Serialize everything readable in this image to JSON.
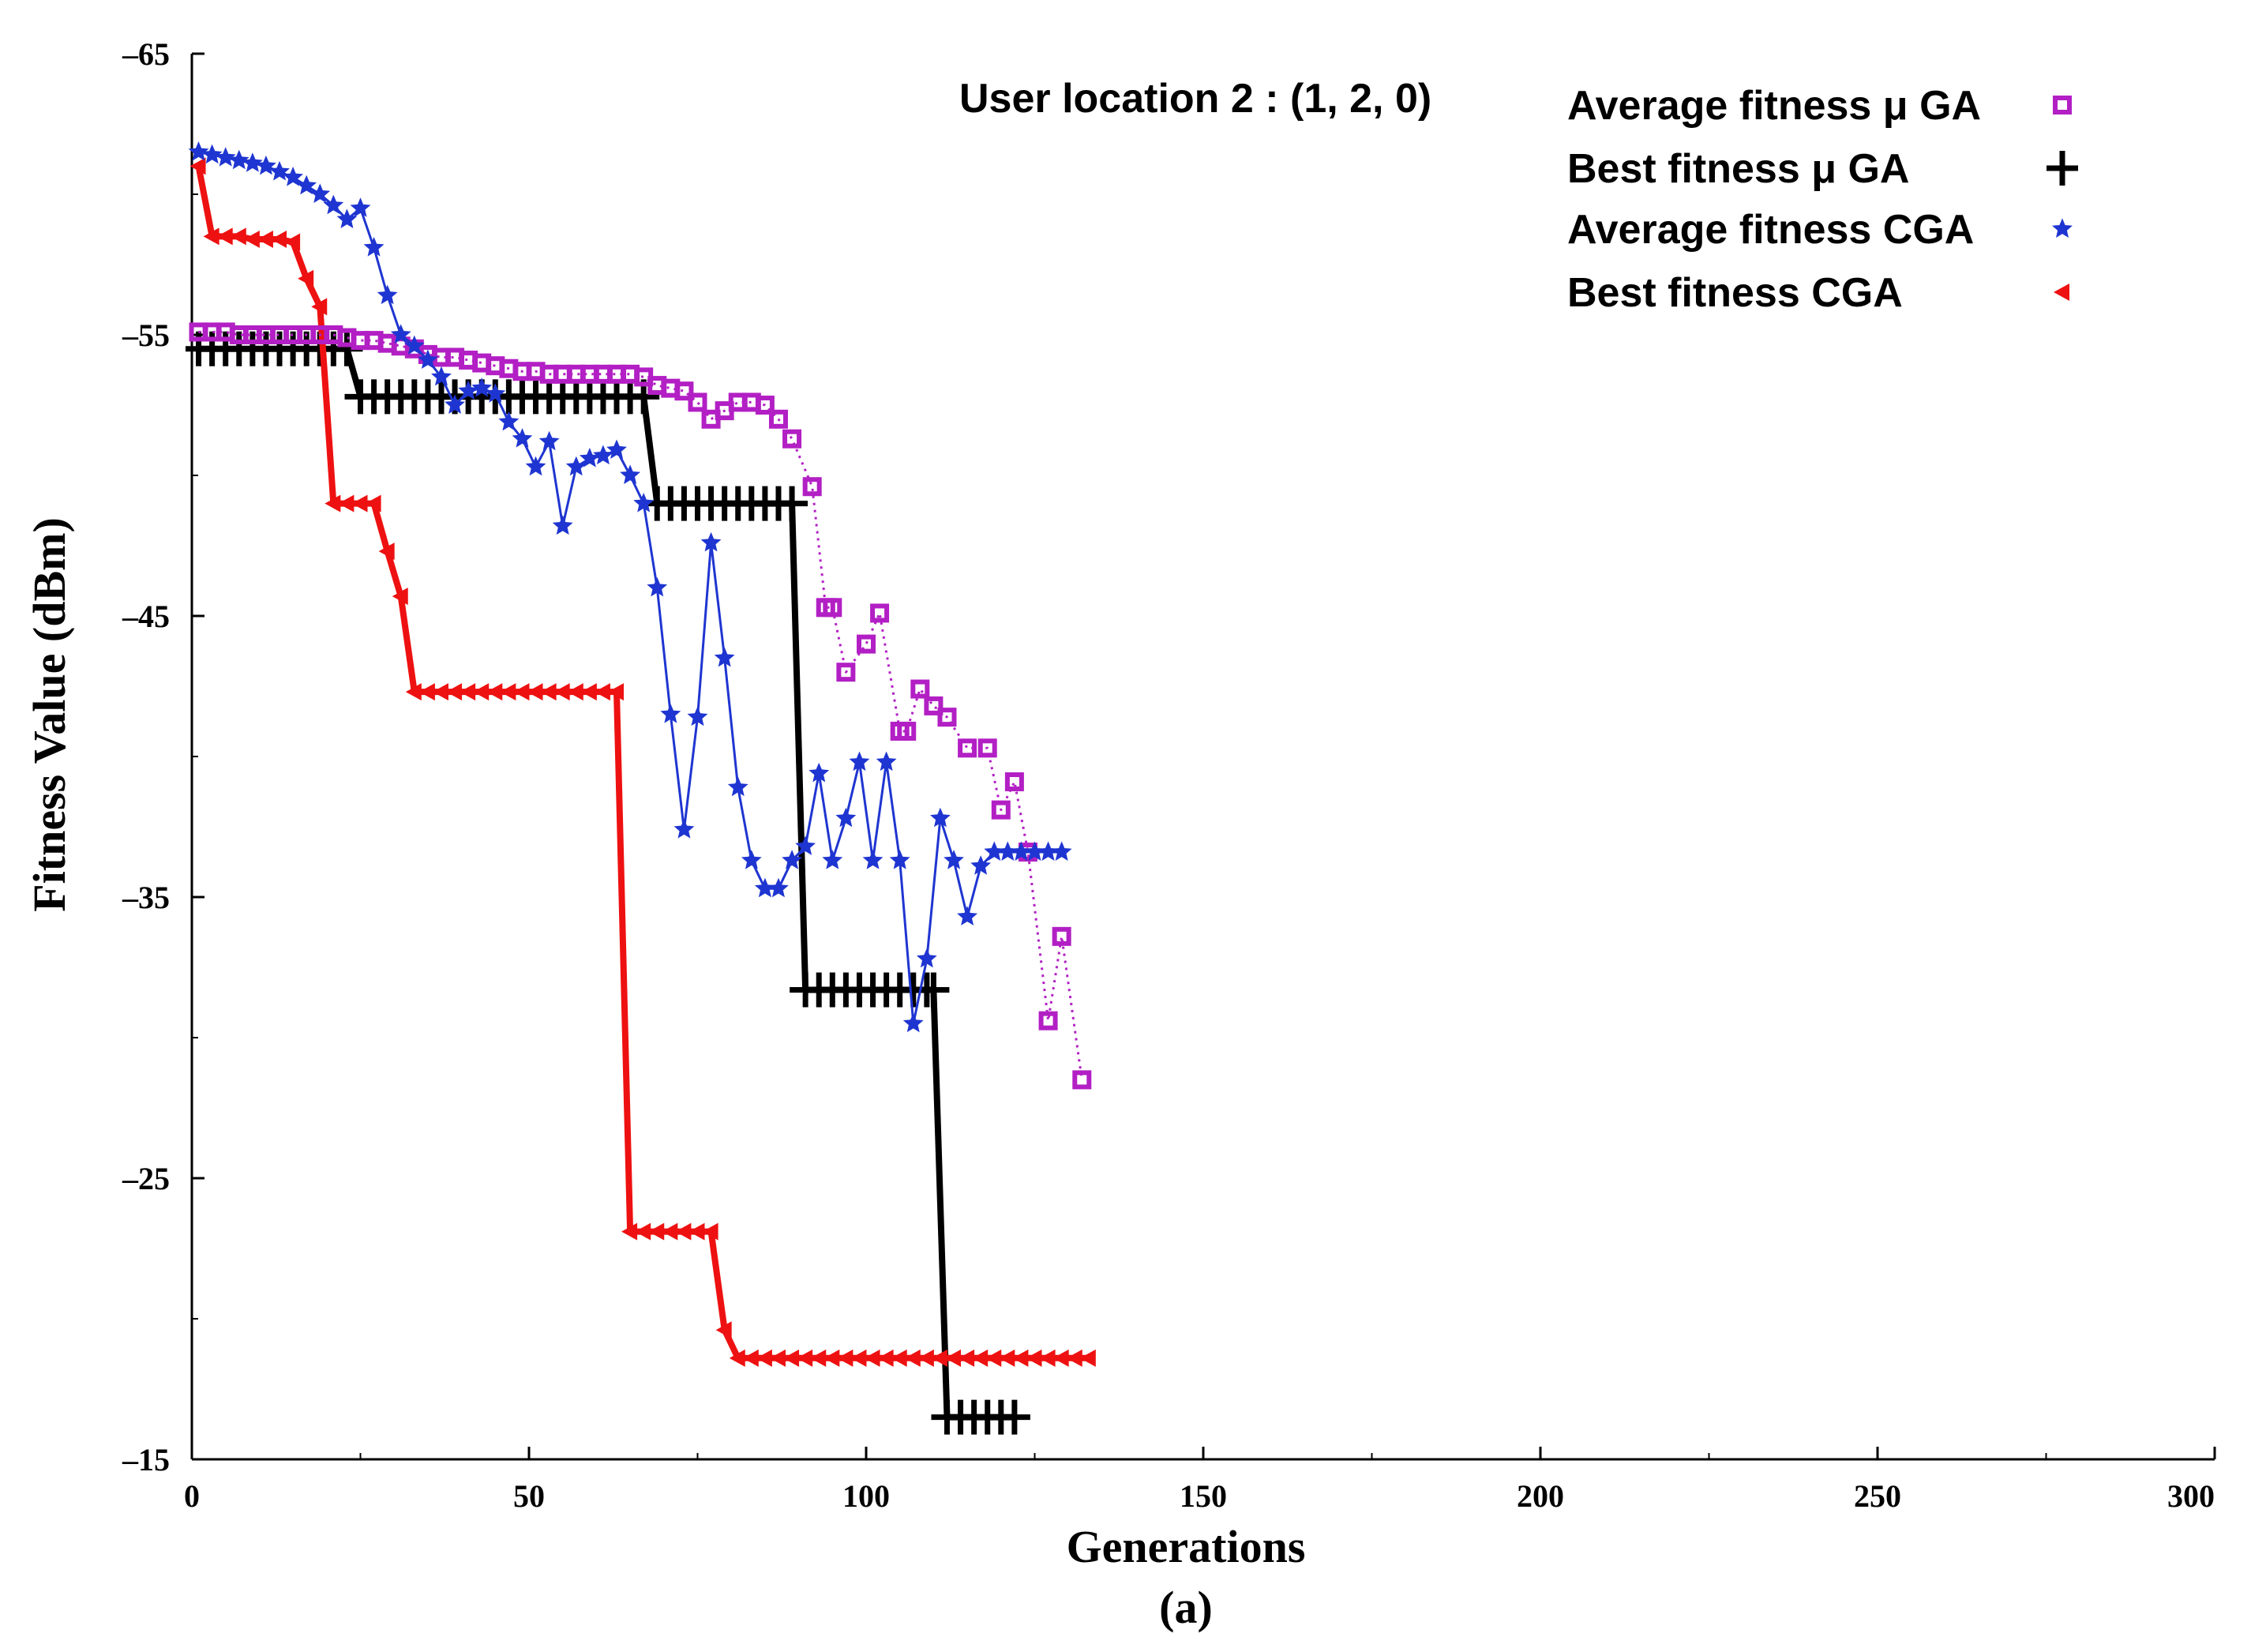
{
  "chart_data": {
    "type": "line",
    "title": "",
    "annotation": "User location 2 : (1, 2, 0)",
    "xlabel": "Generations",
    "ylabel": "Fitness Value (dBm)",
    "caption": "(a)",
    "xlim": [
      0,
      300
    ],
    "ylim": [
      -65,
      -15
    ],
    "x_ticks": [
      0,
      50,
      100,
      150,
      200,
      250,
      300
    ],
    "y_ticks": [
      -65,
      -55,
      -45,
      -35,
      -25,
      -15
    ],
    "legend_position": "top-right",
    "series": [
      {
        "name": "Average fitness μ GA",
        "color": "#b21fc4",
        "marker": "square",
        "line": "dotted",
        "x": [
          1,
          3,
          5,
          7,
          9,
          11,
          13,
          15,
          17,
          19,
          21,
          23,
          25,
          27,
          29,
          31,
          33,
          35,
          37,
          39,
          41,
          43,
          45,
          47,
          49,
          51,
          53,
          55,
          57,
          59,
          61,
          63,
          65,
          67,
          69,
          71,
          73,
          75,
          77,
          79,
          81,
          83,
          85,
          87,
          89,
          92,
          94,
          95,
          97,
          100,
          102,
          105,
          106,
          108,
          110,
          112,
          115,
          118,
          120,
          122,
          124,
          127,
          129,
          132
        ],
        "y": [
          -55.1,
          -55.1,
          -55.1,
          -55,
          -55,
          -55,
          -55,
          -55,
          -55,
          -55,
          -55,
          -54.9,
          -54.8,
          -54.8,
          -54.7,
          -54.6,
          -54.5,
          -54.3,
          -54.2,
          -54.2,
          -54.1,
          -54,
          -53.9,
          -53.8,
          -53.7,
          -53.7,
          -53.6,
          -53.6,
          -53.6,
          -53.6,
          -53.6,
          -53.6,
          -53.6,
          -53.5,
          -53.2,
          -53.1,
          -53,
          -52.6,
          -52,
          -52.3,
          -52.6,
          -52.6,
          -52.5,
          -52,
          -51.3,
          -49.6,
          -45.3,
          -45.3,
          -43,
          -44,
          -45.1,
          -40.9,
          -40.9,
          -42.4,
          -41.8,
          -41.4,
          -40.3,
          -40.3,
          -38.1,
          -39.1,
          -36.6,
          -30.6,
          -33.6,
          -28.5
        ]
      },
      {
        "name": "Best fitness μ GA",
        "color": "#000000",
        "marker": "plus",
        "line": "solid",
        "x": [
          1,
          3,
          5,
          7,
          9,
          11,
          13,
          15,
          17,
          19,
          21,
          23,
          25,
          27,
          29,
          31,
          33,
          35,
          37,
          39,
          41,
          43,
          45,
          47,
          49,
          51,
          53,
          55,
          57,
          59,
          61,
          63,
          65,
          67,
          69,
          71,
          73,
          75,
          77,
          79,
          81,
          83,
          85,
          87,
          89,
          91,
          93,
          95,
          97,
          99,
          101,
          103,
          105,
          107,
          109,
          110,
          112,
          114,
          116,
          118,
          120,
          122
        ],
        "y": [
          -54.5,
          -54.5,
          -54.5,
          -54.5,
          -54.5,
          -54.5,
          -54.5,
          -54.5,
          -54.5,
          -54.5,
          -54.5,
          -54.5,
          -52.8,
          -52.8,
          -52.8,
          -52.8,
          -52.8,
          -52.8,
          -52.8,
          -52.8,
          -52.8,
          -52.8,
          -52.8,
          -52.8,
          -52.8,
          -52.8,
          -52.8,
          -52.8,
          -52.8,
          -52.8,
          -52.8,
          -52.8,
          -52.8,
          -52.8,
          -49,
          -49,
          -49,
          -49,
          -49,
          -49,
          -49,
          -49,
          -49,
          -49,
          -49,
          -31.7,
          -31.7,
          -31.7,
          -31.7,
          -31.7,
          -31.7,
          -31.7,
          -31.7,
          -31.7,
          -31.7,
          -31.7,
          -16.5,
          -16.5,
          -16.5,
          -16.5,
          -16.5,
          -16.5
        ]
      },
      {
        "name": "Average fitness CGA",
        "color": "#1f35d1",
        "marker": "star",
        "line": "solid",
        "x": [
          1,
          3,
          5,
          7,
          9,
          11,
          13,
          15,
          17,
          19,
          21,
          23,
          25,
          27,
          29,
          31,
          33,
          35,
          37,
          39,
          41,
          43,
          45,
          47,
          49,
          51,
          53,
          55,
          57,
          59,
          61,
          63,
          65,
          67,
          69,
          71,
          73,
          75,
          77,
          79,
          81,
          83,
          85,
          87,
          89,
          91,
          93,
          95,
          97,
          99,
          101,
          103,
          105,
          107,
          109,
          111,
          113,
          115,
          117,
          119,
          121,
          123,
          125,
          127,
          129
        ],
        "y": [
          -61.5,
          -61.4,
          -61.3,
          -61.2,
          -61.1,
          -61,
          -60.8,
          -60.6,
          -60.3,
          -60,
          -59.6,
          -59.1,
          -59.5,
          -58.1,
          -56.4,
          -55,
          -54.6,
          -54.1,
          -53.5,
          -52.5,
          -53,
          -53.1,
          -52.9,
          -51.9,
          -51.3,
          -50.3,
          -51.2,
          -48.2,
          -50.3,
          -50.6,
          -50.7,
          -50.9,
          -50,
          -49,
          -46,
          -41.5,
          -37.4,
          -41.4,
          -47.6,
          -43.5,
          -38.9,
          -36.3,
          -35.3,
          -35.3,
          -36.3,
          -36.8,
          -39.4,
          -36.3,
          -37.8,
          -39.8,
          -36.3,
          -39.8,
          -36.3,
          -30.5,
          -32.8,
          -37.8,
          -36.3,
          -34.3,
          -36.1,
          -36.6,
          -36.6,
          -36.6,
          -36.6,
          -36.6,
          -36.6
        ]
      },
      {
        "name": "Best fitness CGA",
        "color": "#ee1111",
        "marker": "triangle-left",
        "line": "solid",
        "x": [
          1,
          3,
          5,
          7,
          9,
          11,
          13,
          15,
          17,
          19,
          21,
          23,
          25,
          27,
          29,
          31,
          33,
          35,
          37,
          39,
          41,
          43,
          45,
          47,
          49,
          51,
          53,
          55,
          57,
          59,
          61,
          63,
          65,
          67,
          69,
          71,
          73,
          75,
          77,
          79,
          81,
          83,
          85,
          87,
          89,
          91,
          93,
          95,
          97,
          99,
          101,
          103,
          105,
          107,
          109,
          111,
          113,
          115,
          117,
          119,
          121,
          123,
          125,
          127,
          129,
          131,
          133
        ],
        "y": [
          -61,
          -58.5,
          -58.5,
          -58.5,
          -58.4,
          -58.4,
          -58.4,
          -58.3,
          -57,
          -56,
          -49,
          -49,
          -49,
          -49,
          -47.3,
          -45.7,
          -42.3,
          -42.3,
          -42.3,
          -42.3,
          -42.3,
          -42.3,
          -42.3,
          -42.3,
          -42.3,
          -42.3,
          -42.3,
          -42.3,
          -42.3,
          -42.3,
          -42.3,
          -42.3,
          -23.1,
          -23.1,
          -23.1,
          -23.1,
          -23.1,
          -23.1,
          -23.1,
          -19.6,
          -18.6,
          -18.6,
          -18.6,
          -18.6,
          -18.6,
          -18.6,
          -18.6,
          -18.6,
          -18.6,
          -18.6,
          -18.6,
          -18.6,
          -18.6,
          -18.6,
          -18.6,
          -18.6,
          -18.6,
          -18.6,
          -18.6,
          -18.6,
          -18.6,
          -18.6,
          -18.6,
          -18.6,
          -18.6,
          -18.6,
          -18.6
        ]
      }
    ]
  }
}
